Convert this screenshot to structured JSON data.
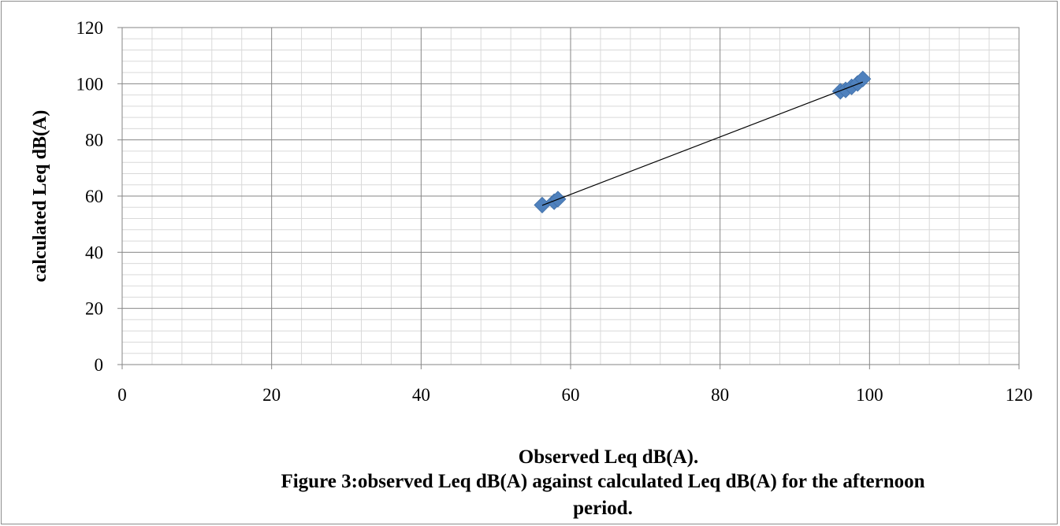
{
  "chart_data": {
    "type": "scatter",
    "xlabel": "Observed Leq dB(A).",
    "ylabel": "calculated Leq dB(A)",
    "xlim": [
      0,
      120
    ],
    "ylim": [
      0,
      120
    ],
    "x_ticks": [
      "0",
      "20",
      "40",
      "60",
      "80",
      "100",
      "120"
    ],
    "y_ticks": [
      "0",
      "20",
      "40",
      "60",
      "80",
      "100",
      "120"
    ],
    "x_major_step": 20,
    "y_major_step": 20,
    "x_minor_step": 4,
    "y_minor_step": 4,
    "grid": true,
    "series": [
      {
        "points": [
          {
            "x": 56.2,
            "y": 56.8
          },
          {
            "x": 57.8,
            "y": 58.0
          },
          {
            "x": 58.3,
            "y": 58.9
          },
          {
            "x": 96.1,
            "y": 97.3
          },
          {
            "x": 96.8,
            "y": 97.8
          },
          {
            "x": 97.6,
            "y": 98.9
          },
          {
            "x": 98.4,
            "y": 100.1
          },
          {
            "x": 99.1,
            "y": 101.7
          }
        ],
        "color": "#4f81bd"
      }
    ],
    "trendline": {
      "x": [
        56.2,
        99.1
      ],
      "y": [
        56.7,
        100.6
      ],
      "color": "#000000"
    }
  },
  "caption": {
    "line1": "Figure 3:observed Leq dB(A) against calculated Leq dB(A) for the afternoon",
    "line2": "period."
  }
}
